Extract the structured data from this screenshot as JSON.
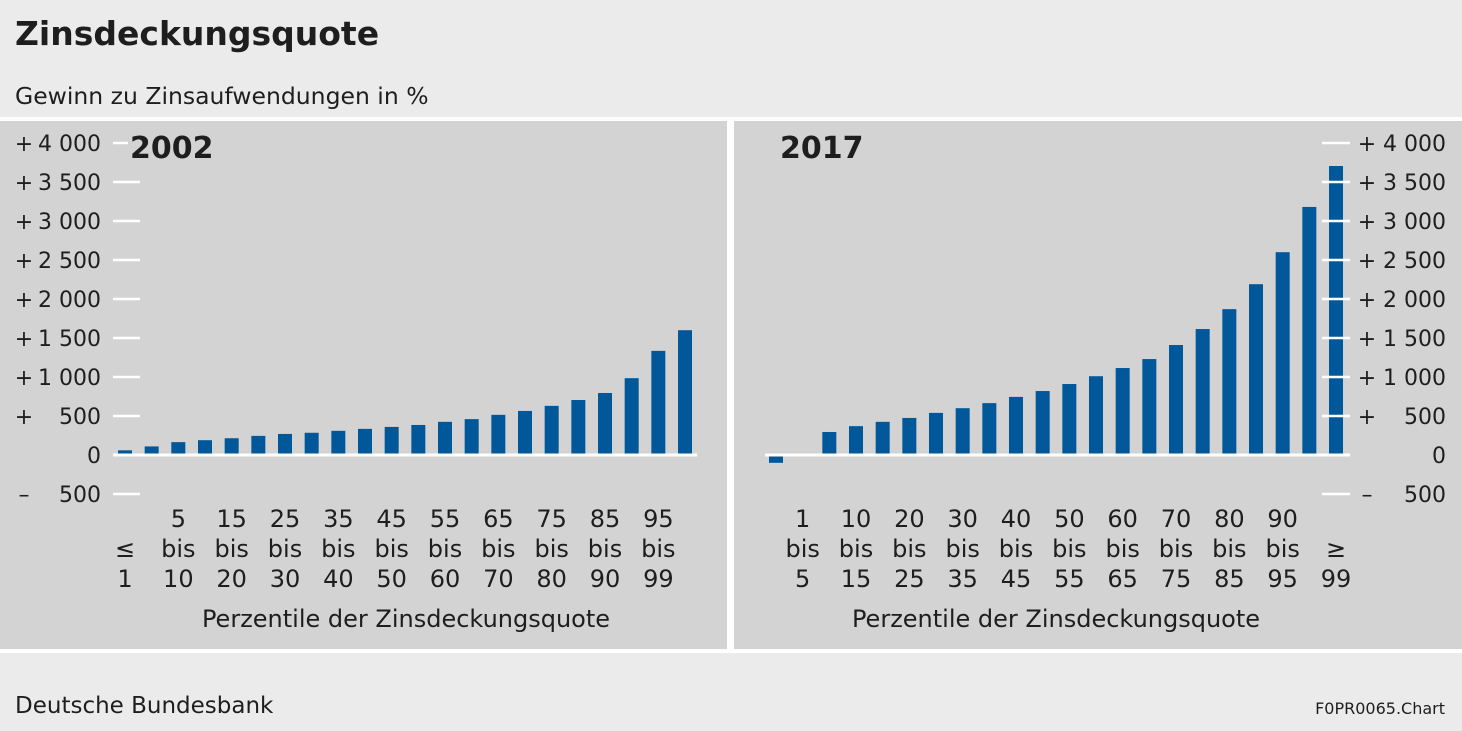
{
  "title": "Zinsdeckungsquote",
  "subtitle": "Gewinn zu Zinsaufwendungen in %",
  "source": "Deutsche Bundesbank",
  "chart_id": "F0PR0065.Chart",
  "colors": {
    "bar": "#00589b",
    "panel": "#d3d3d3",
    "header": "#ebebeb",
    "axis": "#ffffff",
    "text": "#1e1e1e"
  },
  "chart_data": [
    {
      "type": "bar",
      "title": "2002",
      "xlabel": "Perzentile der Zinsdeckungsquote",
      "ylim": [
        -500,
        4000
      ],
      "grid": false,
      "y_axis_side": "left",
      "yticks": [
        {
          "value": 4000,
          "sign": "+",
          "label": "4 000"
        },
        {
          "value": 3500,
          "sign": "+",
          "label": "3 500"
        },
        {
          "value": 3000,
          "sign": "+",
          "label": "3 000"
        },
        {
          "value": 2500,
          "sign": "+",
          "label": "2 500"
        },
        {
          "value": 2000,
          "sign": "+",
          "label": "2 000"
        },
        {
          "value": 1500,
          "sign": "+",
          "label": "1 500"
        },
        {
          "value": 1000,
          "sign": "+",
          "label": "1 000"
        },
        {
          "value": 500,
          "sign": "+",
          "label": "500"
        },
        {
          "value": 0,
          "label": "0"
        },
        {
          "value": -500,
          "sign": "–",
          "label": "500"
        }
      ],
      "category_labels": [
        [
          "≤",
          "1"
        ],
        null,
        [
          "5",
          "bis",
          "10"
        ],
        null,
        [
          "15",
          "bis",
          "20"
        ],
        null,
        [
          "25",
          "bis",
          "30"
        ],
        null,
        [
          "35",
          "bis",
          "40"
        ],
        null,
        [
          "45",
          "bis",
          "50"
        ],
        null,
        [
          "55",
          "bis",
          "60"
        ],
        null,
        [
          "65",
          "bis",
          "70"
        ],
        null,
        [
          "75",
          "bis",
          "80"
        ],
        null,
        [
          "85",
          "bis",
          "90"
        ],
        null,
        [
          "95",
          "bis",
          "99"
        ],
        null
      ],
      "values": [
        60,
        110,
        165,
        190,
        215,
        245,
        270,
        285,
        310,
        335,
        360,
        385,
        425,
        460,
        515,
        565,
        630,
        705,
        795,
        985,
        1335,
        1600
      ]
    },
    {
      "type": "bar",
      "title": "2017",
      "xlabel": "Perzentile der Zinsdeckungsquote",
      "ylim": [
        -500,
        4000
      ],
      "grid": false,
      "y_axis_side": "right",
      "yticks": [
        {
          "value": 4000,
          "sign": "+",
          "label": "4 000"
        },
        {
          "value": 3500,
          "sign": "+",
          "label": "3 500"
        },
        {
          "value": 3000,
          "sign": "+",
          "label": "3 000"
        },
        {
          "value": 2500,
          "sign": "+",
          "label": "2 500"
        },
        {
          "value": 2000,
          "sign": "+",
          "label": "2 000"
        },
        {
          "value": 1500,
          "sign": "+",
          "label": "1 500"
        },
        {
          "value": 1000,
          "sign": "+",
          "label": "1 000"
        },
        {
          "value": 500,
          "sign": "+",
          "label": "500"
        },
        {
          "value": 0,
          "label": "0"
        },
        {
          "value": -500,
          "sign": "–",
          "label": "500"
        }
      ],
      "category_labels": [
        null,
        [
          "1",
          "bis",
          "5"
        ],
        null,
        [
          "10",
          "bis",
          "15"
        ],
        null,
        [
          "20",
          "bis",
          "25"
        ],
        null,
        [
          "30",
          "bis",
          "35"
        ],
        null,
        [
          "40",
          "bis",
          "45"
        ],
        null,
        [
          "50",
          "bis",
          "55"
        ],
        null,
        [
          "60",
          "bis",
          "65"
        ],
        null,
        [
          "70",
          "bis",
          "75"
        ],
        null,
        [
          "80",
          "bis",
          "85"
        ],
        null,
        [
          "90",
          "bis",
          "95"
        ],
        null,
        [
          "≥",
          "99"
        ]
      ],
      "values": [
        -100,
        0,
        295,
        370,
        425,
        475,
        540,
        600,
        665,
        745,
        820,
        910,
        1010,
        1115,
        1230,
        1410,
        1615,
        1870,
        2190,
        2600,
        3180,
        3705
      ]
    }
  ]
}
